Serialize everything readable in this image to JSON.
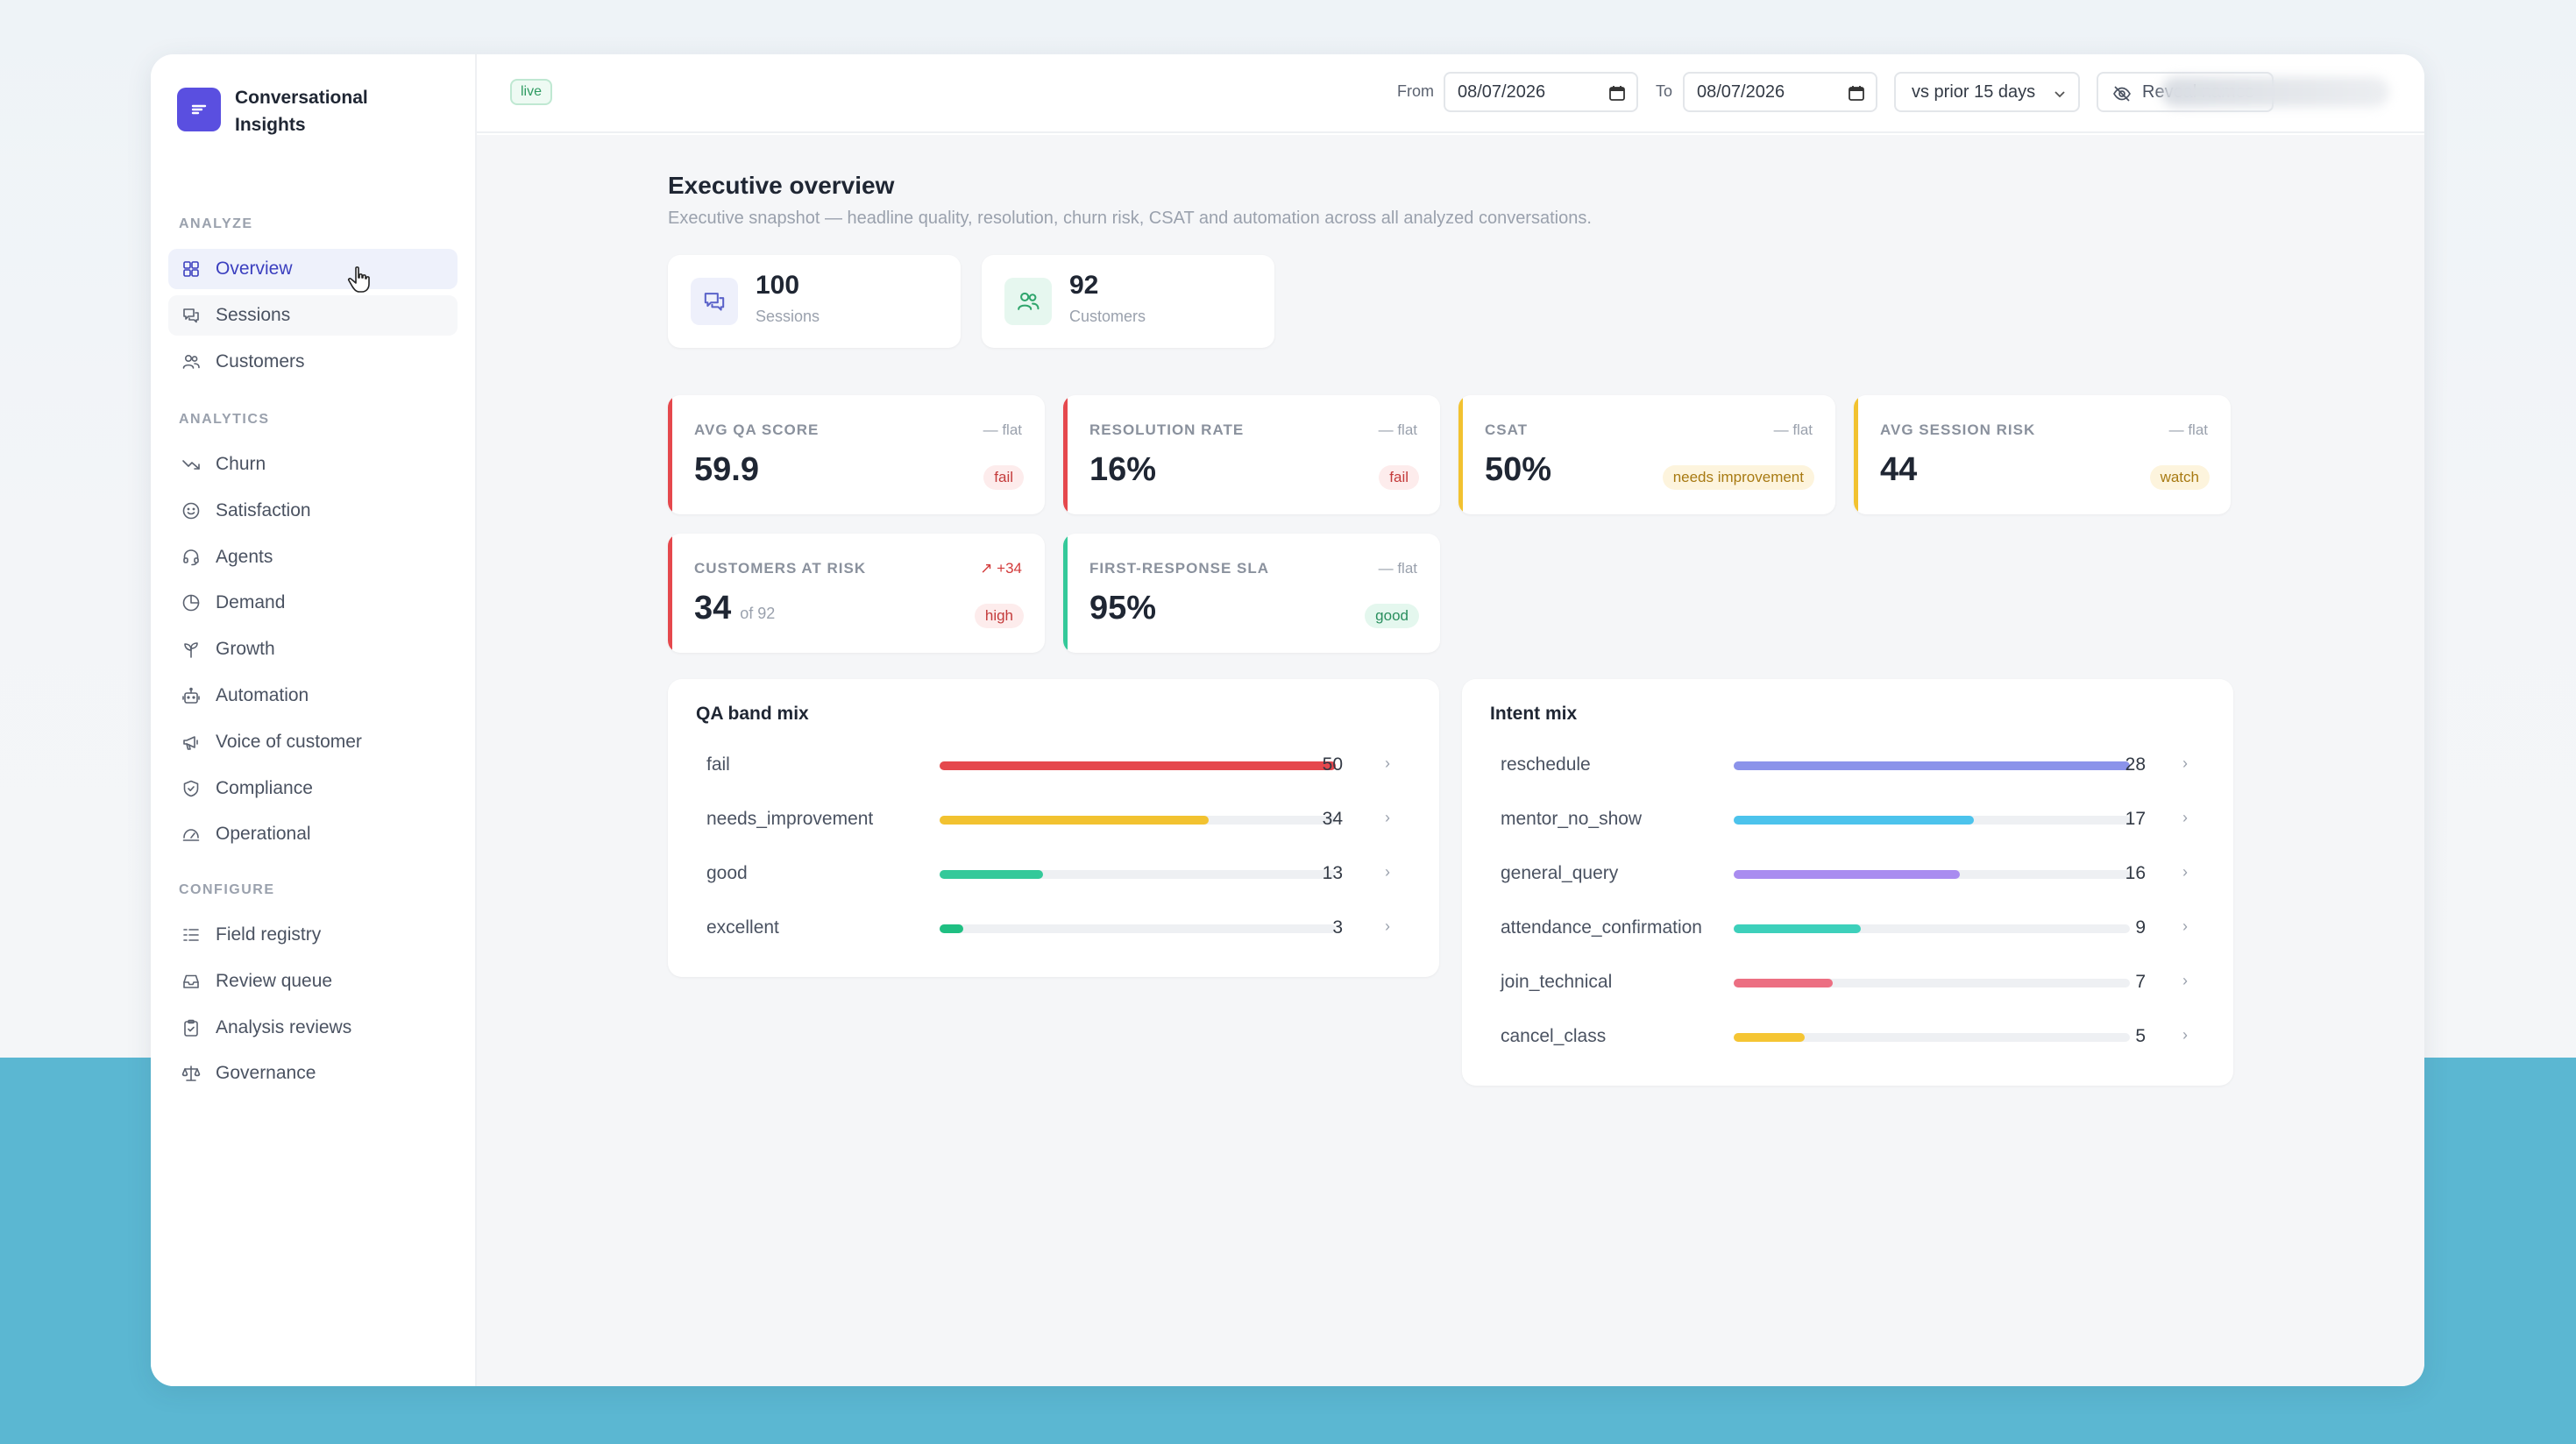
{
  "brand": {
    "name": "Conversational Insights"
  },
  "sidebar": {
    "sections": [
      {
        "label": "ANALYZE",
        "items": [
          {
            "label": "Overview",
            "icon": "grid-icon"
          },
          {
            "label": "Sessions",
            "icon": "chat-icon"
          },
          {
            "label": "Customers",
            "icon": "users-icon"
          }
        ]
      },
      {
        "label": "ANALYTICS",
        "items": [
          {
            "label": "Churn",
            "icon": "trend-down-icon"
          },
          {
            "label": "Satisfaction",
            "icon": "smile-icon"
          },
          {
            "label": "Agents",
            "icon": "headset-icon"
          },
          {
            "label": "Demand",
            "icon": "pie-icon"
          },
          {
            "label": "Growth",
            "icon": "sprout-icon"
          },
          {
            "label": "Automation",
            "icon": "bot-icon"
          },
          {
            "label": "Voice of customer",
            "icon": "megaphone-icon"
          },
          {
            "label": "Compliance",
            "icon": "shield-icon"
          },
          {
            "label": "Operational",
            "icon": "gauge-icon"
          }
        ]
      },
      {
        "label": "CONFIGURE",
        "items": [
          {
            "label": "Field registry",
            "icon": "list-icon"
          },
          {
            "label": "Review queue",
            "icon": "inbox-icon"
          },
          {
            "label": "Analysis reviews",
            "icon": "clipboard-icon"
          },
          {
            "label": "Governance",
            "icon": "scale-icon"
          }
        ]
      }
    ]
  },
  "topbar": {
    "live": "live",
    "from_label": "From",
    "from_value": "08/07/2026",
    "to_label": "To",
    "to_value": "08/07/2026",
    "compare_value": "vs prior 15 days",
    "reveal_label": "Reveal names"
  },
  "page": {
    "title": "Executive overview",
    "subtitle": "Executive snapshot — headline quality, resolution, churn risk, CSAT and automation across all analyzed conversations."
  },
  "stats": [
    {
      "value": "100",
      "label": "Sessions",
      "icon": "chat-icon"
    },
    {
      "value": "92",
      "label": "Customers",
      "icon": "users-icon"
    }
  ],
  "kpis": [
    {
      "title": "AVG QA SCORE",
      "trend": "— flat",
      "value": "59.9",
      "of": "",
      "badge": "fail",
      "accent": "#e5484d",
      "badge_bg": "#fdecec",
      "badge_fg": "#c43b3b",
      "trend_color": "#9aa1ad"
    },
    {
      "title": "RESOLUTION RATE",
      "trend": "— flat",
      "value": "16%",
      "of": "",
      "badge": "fail",
      "accent": "#e5484d",
      "badge_bg": "#fdecec",
      "badge_fg": "#c43b3b",
      "trend_color": "#9aa1ad"
    },
    {
      "title": "CSAT",
      "trend": "— flat",
      "value": "50%",
      "of": "",
      "badge": "needs improvement",
      "accent": "#f2c230",
      "badge_bg": "#fdf4dd",
      "badge_fg": "#a87a12",
      "trend_color": "#9aa1ad"
    },
    {
      "title": "AVG SESSION RISK",
      "trend": "— flat",
      "value": "44",
      "of": "",
      "badge": "watch",
      "accent": "#f2c230",
      "badge_bg": "#fdf4dd",
      "badge_fg": "#a87a12",
      "trend_color": "#9aa1ad"
    },
    {
      "title": "CUSTOMERS AT RISK",
      "trend": "↗ +34",
      "value": "34",
      "of": "of 92",
      "badge": "high",
      "accent": "#e5484d",
      "badge_bg": "#fdecec",
      "badge_fg": "#c43b3b",
      "trend_color": "#d33b3b"
    },
    {
      "title": "FIRST-RESPONSE SLA",
      "trend": "— flat",
      "value": "95%",
      "of": "",
      "badge": "good",
      "accent": "#34c99a",
      "badge_bg": "#e4f7ee",
      "badge_fg": "#2a8f5e",
      "trend_color": "#9aa1ad"
    }
  ],
  "qa_mix": {
    "title": "QA band mix",
    "max": 50,
    "rows": [
      {
        "label": "fail",
        "value": 50,
        "color": "#e5484d"
      },
      {
        "label": "needs_improvement",
        "value": 34,
        "color": "#f2c230"
      },
      {
        "label": "good",
        "value": 13,
        "color": "#34c99a"
      },
      {
        "label": "excellent",
        "value": 3,
        "color": "#1fbf82"
      }
    ]
  },
  "intent_mix": {
    "title": "Intent mix",
    "max": 28,
    "rows": [
      {
        "label": "reschedule",
        "value": 28,
        "color": "#8b93ea"
      },
      {
        "label": "mentor_no_show",
        "value": 17,
        "color": "#4cc3ec"
      },
      {
        "label": "general_query",
        "value": 16,
        "color": "#a98cf0"
      },
      {
        "label": "attendance_confirmation",
        "value": 9,
        "color": "#3dd0bb"
      },
      {
        "label": "join_technical",
        "value": 7,
        "color": "#ec6f82"
      },
      {
        "label": "cancel_class",
        "value": 5,
        "color": "#f5c533"
      }
    ]
  }
}
